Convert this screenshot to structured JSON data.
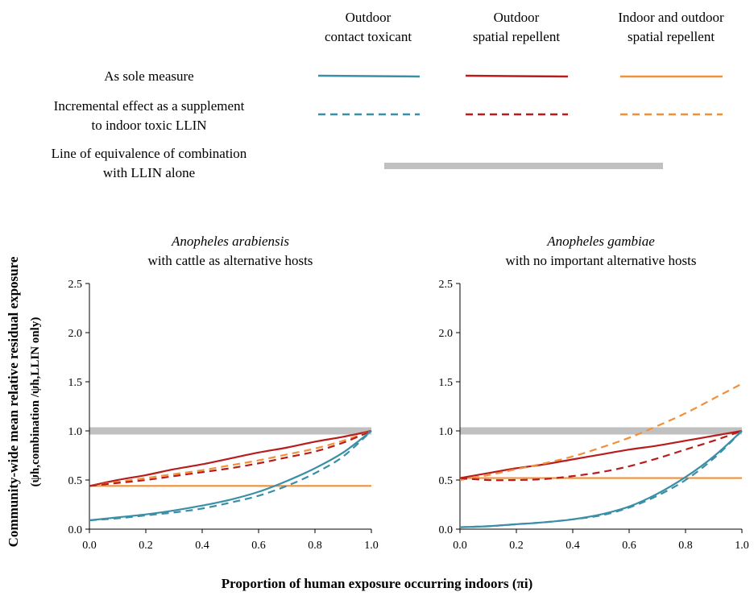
{
  "legend": {
    "columns": [
      {
        "line1": "Outdoor",
        "line2": "contact toxicant",
        "color": "#3a8fa6"
      },
      {
        "line1": "Outdoor",
        "line2": "spatial repellent",
        "color": "#b81c1c"
      },
      {
        "line1": "Indoor and outdoor",
        "line2": "spatial repellent",
        "color": "#f0913a"
      }
    ],
    "rows": [
      {
        "line1": "As sole measure",
        "line2": "",
        "style": "solid"
      },
      {
        "line1": "Incremental effect as a supplement",
        "line2": "to indoor toxic LLIN",
        "style": "dashed"
      },
      {
        "line1": "Line of equivalence of combination",
        "line2": "with LLIN alone",
        "style": "reference"
      }
    ],
    "reference_color": "#c0c0c0"
  },
  "axes": {
    "ylabel_main": "Community-wide mean relative residual exposure",
    "ylabel_formula": "(ψh,combination /ψh,LLIN only)",
    "xlabel": "Proportion of human exposure occurring indoors (πi)"
  },
  "chart_data": [
    {
      "type": "line",
      "title_italic": "Anopheles arabiensis",
      "title_rest": "with cattle as alternative hosts",
      "xlim": [
        0,
        1
      ],
      "ylim": [
        0,
        2.5
      ],
      "xticks": [
        "0.0",
        "0.2",
        "0.4",
        "0.6",
        "0.8",
        "1.0"
      ],
      "yticks": [
        "0.0",
        "0.5",
        "1.0",
        "1.5",
        "2.0",
        "2.5"
      ],
      "reference_y": 1.0,
      "x": [
        0.0,
        0.1,
        0.2,
        0.3,
        0.4,
        0.5,
        0.6,
        0.7,
        0.8,
        0.9,
        1.0
      ],
      "series": [
        {
          "key": "ct-sole",
          "color": "#3a8fa6",
          "style": "solid",
          "values": [
            0.09,
            0.12,
            0.15,
            0.19,
            0.24,
            0.3,
            0.38,
            0.49,
            0.62,
            0.78,
            1.0
          ]
        },
        {
          "key": "ct-supp",
          "color": "#3a8fa6",
          "style": "dashed",
          "values": [
            0.09,
            0.11,
            0.14,
            0.17,
            0.21,
            0.27,
            0.34,
            0.44,
            0.57,
            0.74,
            1.0
          ]
        },
        {
          "key": "sr-sole",
          "color": "#b81c1c",
          "style": "solid",
          "values": [
            0.44,
            0.5,
            0.55,
            0.61,
            0.66,
            0.72,
            0.78,
            0.83,
            0.89,
            0.94,
            1.0
          ]
        },
        {
          "key": "sr-supp",
          "color": "#b81c1c",
          "style": "dashed",
          "values": [
            0.44,
            0.47,
            0.5,
            0.54,
            0.58,
            0.62,
            0.67,
            0.73,
            0.79,
            0.88,
            1.0
          ]
        },
        {
          "key": "io-sole",
          "color": "#f0913a",
          "style": "solid",
          "values": [
            0.44,
            0.44,
            0.44,
            0.44,
            0.44,
            0.44,
            0.44,
            0.44,
            0.44,
            0.44,
            0.44
          ]
        },
        {
          "key": "io-supp",
          "color": "#f0913a",
          "style": "dashed",
          "values": [
            0.44,
            0.48,
            0.52,
            0.56,
            0.6,
            0.65,
            0.7,
            0.76,
            0.82,
            0.9,
            1.0
          ]
        }
      ]
    },
    {
      "type": "line",
      "title_italic": "Anopheles gambiae",
      "title_rest": "with no important alternative hosts",
      "xlim": [
        0,
        1
      ],
      "ylim": [
        0,
        2.5
      ],
      "xticks": [
        "0.0",
        "0.2",
        "0.4",
        "0.6",
        "0.8",
        "1.0"
      ],
      "yticks": [
        "0.0",
        "0.5",
        "1.0",
        "1.5",
        "2.0",
        "2.5"
      ],
      "reference_y": 1.0,
      "x": [
        0.0,
        0.1,
        0.2,
        0.3,
        0.4,
        0.5,
        0.6,
        0.7,
        0.8,
        0.9,
        1.0
      ],
      "series": [
        {
          "key": "ct-sole",
          "color": "#3a8fa6",
          "style": "solid",
          "values": [
            0.02,
            0.03,
            0.05,
            0.07,
            0.1,
            0.15,
            0.23,
            0.36,
            0.53,
            0.74,
            1.0
          ]
        },
        {
          "key": "ct-supp",
          "color": "#3a8fa6",
          "style": "dashed",
          "values": [
            0.02,
            0.03,
            0.05,
            0.07,
            0.1,
            0.14,
            0.22,
            0.34,
            0.5,
            0.72,
            1.0
          ]
        },
        {
          "key": "sr-sole",
          "color": "#b81c1c",
          "style": "solid",
          "values": [
            0.52,
            0.57,
            0.62,
            0.66,
            0.71,
            0.76,
            0.81,
            0.85,
            0.9,
            0.95,
            1.0
          ]
        },
        {
          "key": "sr-supp",
          "color": "#b81c1c",
          "style": "dashed",
          "values": [
            0.52,
            0.5,
            0.5,
            0.51,
            0.54,
            0.58,
            0.64,
            0.72,
            0.81,
            0.9,
            1.0
          ]
        },
        {
          "key": "io-sole",
          "color": "#f0913a",
          "style": "solid",
          "values": [
            0.52,
            0.52,
            0.52,
            0.52,
            0.52,
            0.52,
            0.52,
            0.52,
            0.52,
            0.52,
            0.52
          ]
        },
        {
          "key": "io-supp",
          "color": "#f0913a",
          "style": "dashed",
          "values": [
            0.5,
            0.55,
            0.61,
            0.67,
            0.74,
            0.83,
            0.93,
            1.05,
            1.18,
            1.33,
            1.48
          ]
        }
      ]
    }
  ]
}
